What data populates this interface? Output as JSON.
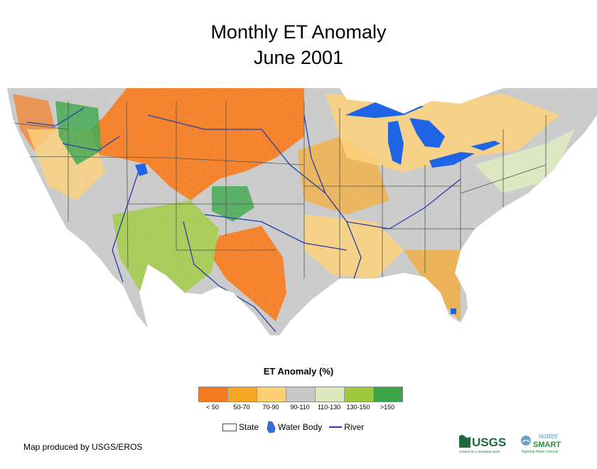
{
  "title": {
    "line1": "Monthly ET Anomaly",
    "line2": "June 2001"
  },
  "legend": {
    "title": "ET Anomaly (%)",
    "classes": [
      {
        "label": "< 50",
        "color": "#f47b20"
      },
      {
        "label": "50-70",
        "color": "#f6a623"
      },
      {
        "label": "70-90",
        "color": "#fdcf72"
      },
      {
        "label": "90-110",
        "color": "#c8c8c8"
      },
      {
        "label": "110-130",
        "color": "#dde9bc"
      },
      {
        "label": "130-150",
        "color": "#9dc93c"
      },
      {
        "label": ">150",
        "color": "#3aa54a"
      }
    ]
  },
  "map_key": {
    "state": "State",
    "water_body": "Water Body",
    "river": "River"
  },
  "colors": {
    "water": "#1f63e6",
    "river": "#233fa6",
    "state_border": "#555555",
    "base": "#c8c8c8"
  },
  "credit": "Map produced by USGS/EROS",
  "logos": {
    "usgs": "USGS",
    "usgs_tagline": "science for a changing world",
    "water_smart_top": "water",
    "water_smart_bottom": "SMART",
    "water_smart_sub": "National Water Census"
  }
}
